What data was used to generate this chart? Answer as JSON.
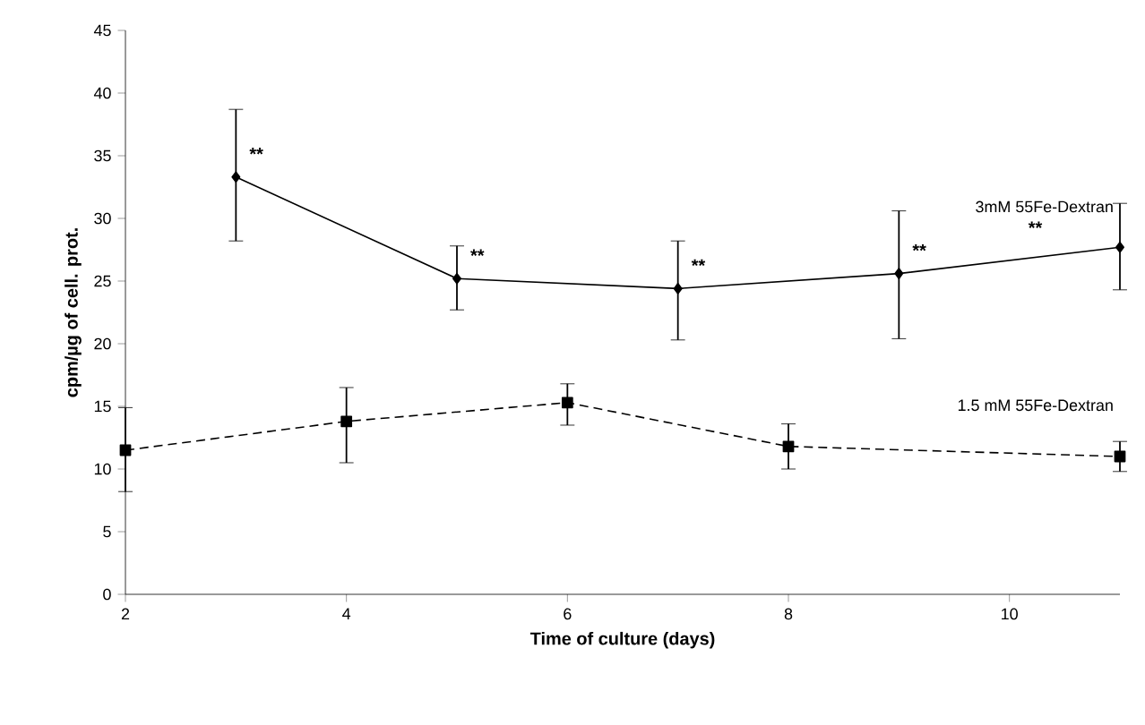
{
  "chart_data": {
    "type": "line",
    "xlabel": "Time of culture (days)",
    "ylabel": "cpm/µg of cell. prot.",
    "xlim": [
      2,
      11
    ],
    "xticks": [
      2,
      4,
      6,
      8,
      10
    ],
    "ylim": [
      0,
      45
    ],
    "yticks": [
      0,
      5,
      10,
      15,
      20,
      25,
      30,
      35,
      40,
      45
    ],
    "grid": false,
    "series": [
      {
        "name": "3mM 55Fe-Dextran",
        "color": "#000000",
        "marker": "diamond",
        "line_style": "solid",
        "x": [
          3,
          5,
          7,
          9,
          11
        ],
        "values": [
          33.3,
          25.2,
          24.4,
          25.6,
          27.7
        ],
        "errors": [
          [
            28.2,
            38.7
          ],
          [
            22.7,
            27.8
          ],
          [
            20.3,
            28.2
          ],
          [
            20.4,
            30.6
          ],
          [
            24.3,
            31.2
          ]
        ]
      },
      {
        "name": "1.5 mM 55Fe-Dextran",
        "color": "#000000",
        "marker": "square",
        "line_style": "dashed",
        "x": [
          2,
          4,
          6,
          8,
          11
        ],
        "values": [
          11.5,
          13.8,
          15.3,
          11.8,
          11.0
        ],
        "errors": [
          [
            8.2,
            14.9
          ],
          [
            10.5,
            16.5
          ],
          [
            13.5,
            16.8
          ],
          [
            10.0,
            13.6
          ],
          [
            9.8,
            12.2
          ]
        ]
      }
    ],
    "annotations": [
      {
        "text": "**",
        "x": 3,
        "y": 33.3
      },
      {
        "text": "**",
        "x": 5,
        "y": 25.2
      },
      {
        "text": "**",
        "x": 7,
        "y": 24.4
      },
      {
        "text": "**",
        "x": 9,
        "y": 25.6
      },
      "**"
    ]
  }
}
